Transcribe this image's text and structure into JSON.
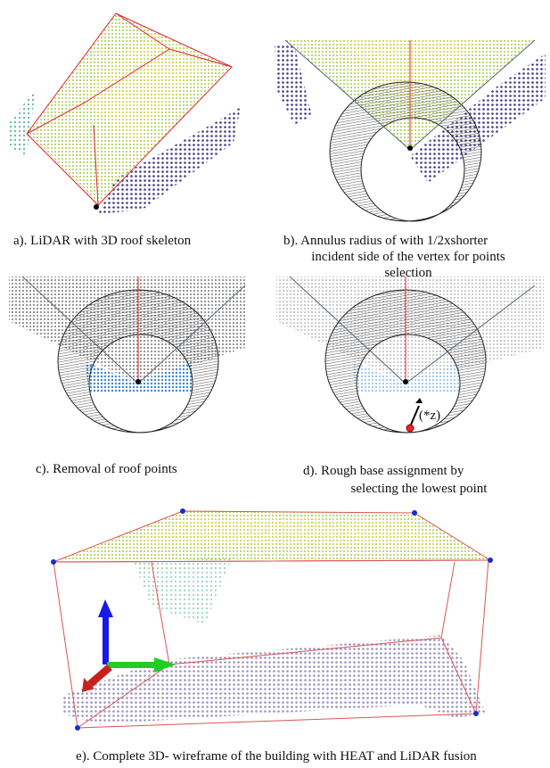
{
  "panels": [
    {
      "caption": [
        "a).   LiDAR with 3D roof skeleton"
      ]
    },
    {
      "caption": [
        "b).   Annulus radius of with 1/2xshorter",
        "incident side of the vertex for points",
        "selection"
      ]
    },
    {
      "caption": [
        "c).   Removal of roof points"
      ]
    },
    {
      "caption": [
        "d).   Rough base assignment by",
        "selecting the lowest point"
      ],
      "annotation": "(*z)"
    },
    {
      "caption": [
        "e).  Complete 3D- wireframe of the building with HEAT and LiDAR fusion"
      ]
    }
  ]
}
